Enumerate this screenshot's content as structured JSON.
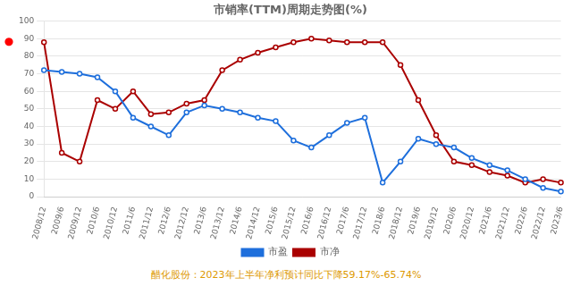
{
  "chart_data": {
    "type": "line",
    "title": "市销率(TTM)周期走势图(%)",
    "categories": [
      "2008/12",
      "2009/6",
      "2009/12",
      "2010/6",
      "2010/12",
      "2011/6",
      "2011/12",
      "2012/6",
      "2012/12",
      "2013/6",
      "2013/12",
      "2014/6",
      "2014/12",
      "2015/6",
      "2015/12",
      "2016/6",
      "2016/12",
      "2017/6",
      "2017/12",
      "2018/6",
      "2018/12",
      "2019/6",
      "2019/12",
      "2020/6",
      "2020/12",
      "2021/6",
      "2021/12",
      "2022/6",
      "2022/12",
      "2023/6"
    ],
    "series": [
      {
        "name": "市盈",
        "color": "#1e6fdc",
        "marker": "circle",
        "values": [
          72,
          71,
          70,
          68,
          60,
          45,
          40,
          35,
          48,
          52,
          50,
          48,
          45,
          43,
          32,
          28,
          35,
          42,
          45,
          8,
          20,
          33,
          30,
          28,
          22,
          18,
          15,
          10,
          5,
          3
        ]
      },
      {
        "name": "市净",
        "color": "#aa0000",
        "marker": "circle",
        "values": [
          88,
          25,
          20,
          55,
          50,
          60,
          47,
          48,
          53,
          55,
          72,
          78,
          82,
          85,
          88,
          90,
          89,
          88,
          88,
          88,
          75,
          55,
          35,
          20,
          18,
          14,
          12,
          8,
          10,
          8
        ]
      }
    ],
    "ylim": [
      0,
      100
    ],
    "yticks": [
      0,
      10,
      20,
      30,
      40,
      50,
      60,
      70,
      80,
      90,
      100
    ],
    "grid": true,
    "legend": "bottom",
    "annotations": [
      {
        "text": "●",
        "y": 88,
        "color": "red"
      },
      {
        "text": "醋化股份：2023年上半年净利预计同比下降59.17%-65.74%",
        "color": "#dd9900"
      }
    ]
  }
}
